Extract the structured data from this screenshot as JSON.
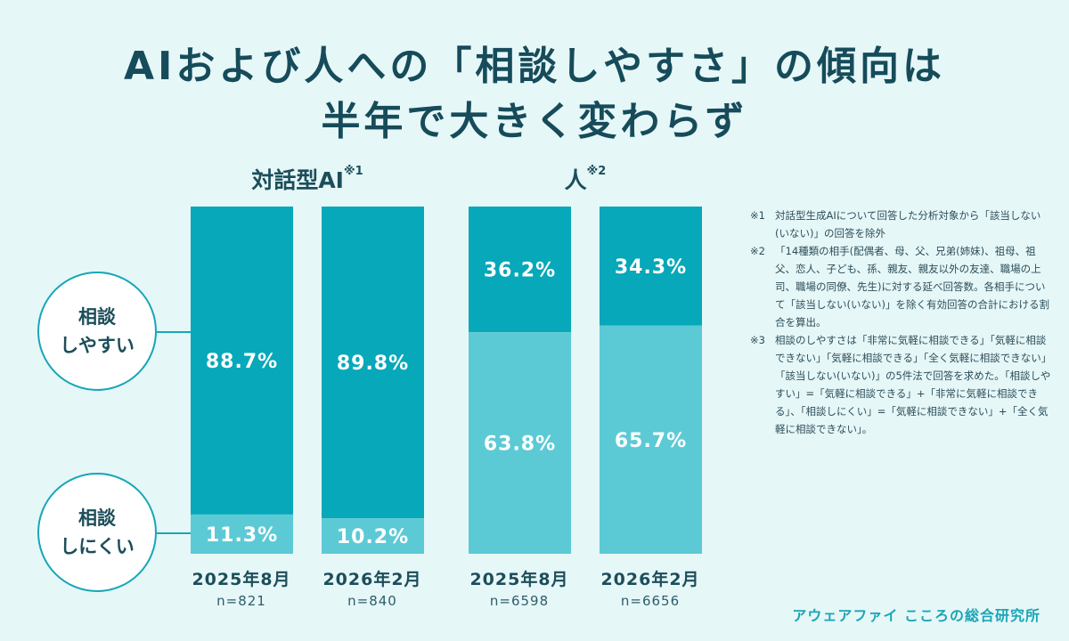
{
  "title_line1": "AIおよび人への「相談しやすさ」の傾向は",
  "title_line2": "半年で大きく変わらず",
  "groups": [
    {
      "label": "対話型AI",
      "note": "※1"
    },
    {
      "label": "人",
      "note": "※2"
    }
  ],
  "legend": {
    "easy": {
      "line1": "相談",
      "line2": "しやすい"
    },
    "hard": {
      "line1": "相談",
      "line2": "しにくい"
    }
  },
  "colors": {
    "easy": "#06a8b9",
    "hard": "#5ccad5",
    "text_on_bar": "#ffffff"
  },
  "chart_data": {
    "type": "bar",
    "stacked": true,
    "percent": true,
    "ylim": [
      0,
      100
    ],
    "categories": [
      "2025年8月",
      "2026年2月",
      "2025年8月",
      "2026年2月"
    ],
    "n_labels": [
      "n=821",
      "n=840",
      "n=6598",
      "n=6656"
    ],
    "series": [
      {
        "name": "相談しやすい",
        "values": [
          88.7,
          89.8,
          36.2,
          34.3
        ],
        "labels": [
          "88.7%",
          "89.8%",
          "36.2%",
          "34.3%"
        ]
      },
      {
        "name": "相談しにくい",
        "values": [
          11.3,
          10.2,
          63.8,
          65.7
        ],
        "labels": [
          "11.3%",
          "10.2%",
          "63.8%",
          "65.7%"
        ]
      }
    ]
  },
  "notes": [
    {
      "mark": "※1",
      "text": "対話型生成AIについて回答した分析対象から「該当しない(いない)」の回答を除外"
    },
    {
      "mark": "※2",
      "text": "「14種類の相手(配偶者、母、父、兄弟(姉妹)、祖母、祖父、恋人、子ども、孫、親友、親友以外の友達、職場の上司、職場の同僚、先生)に対する延べ回答数。各相手について「該当しない(いない)」を除く有効回答の合計における割合を算出。"
    },
    {
      "mark": "※3",
      "text": "相談のしやすさは「非常に気軽に相談できる」「気軽に相談できない」「気軽に相談できる」「全く気軽に相談できない」「該当しない(いない)」の5件法で回答を求めた。「相談しやすい」=「気軽に相談できる」+「非常に気軽に相談できる」、「相談しにくい」=「気軽に相談できない」+「全く気軽に相談できない」。"
    }
  ],
  "brand": "アウェアファイ こころの総合研究所"
}
